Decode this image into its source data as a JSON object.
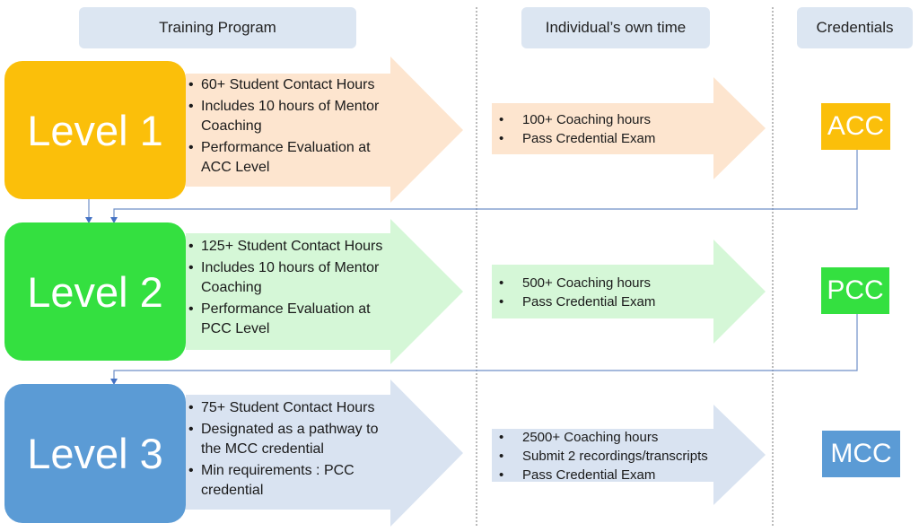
{
  "headers": {
    "training": "Training Program",
    "own_time": "Individual’s own time",
    "credentials": "Credentials"
  },
  "levels": [
    {
      "label": "Level 1",
      "color": "#fbbf0a",
      "light": "#fde5cf",
      "program": [
        "60+ Student Contact Hours",
        "Includes 10 hours of Mentor Coaching",
        "Performance Evaluation at ACC Level"
      ],
      "own_time": [
        "100+ Coaching hours",
        "Pass Credential Exam"
      ],
      "credential": "ACC"
    },
    {
      "label": "Level 2",
      "color": "#34e040",
      "light": "#d5f7d7",
      "program": [
        "125+ Student Contact Hours",
        "Includes 10 hours of Mentor Coaching",
        "Performance Evaluation at PCC Level"
      ],
      "own_time": [
        "500+ Coaching hours",
        "Pass Credential Exam"
      ],
      "credential": "PCC"
    },
    {
      "label": "Level 3",
      "color": "#5b9bd5",
      "light": "#d9e3f1",
      "program": [
        "75+ Student Contact Hours",
        "Designated as a pathway to the MCC credential",
        "Min requirements : PCC credential"
      ],
      "own_time": [
        "2500+ Coaching hours",
        "Submit 2 recordings/transcripts",
        "Pass Credential Exam"
      ],
      "credential": "MCC"
    }
  ]
}
